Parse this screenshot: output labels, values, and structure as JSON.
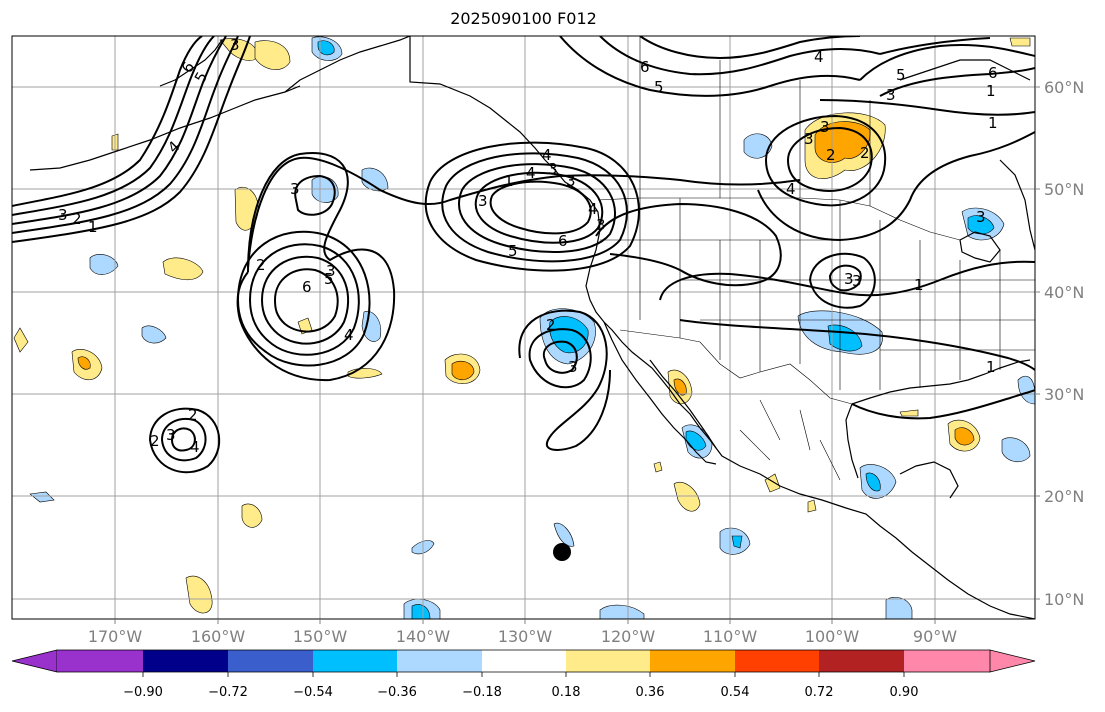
{
  "title": "2025090100 F012",
  "lon_labels": [
    "170°W",
    "160°W",
    "150°W",
    "140°W",
    "130°W",
    "120°W",
    "110°W",
    "100°W",
    "90°W"
  ],
  "lat_labels": [
    "60°N",
    "50°N",
    "40°N",
    "30°N",
    "20°N",
    "10°N"
  ],
  "colorbar": {
    "tick_labels": [
      "−0.90",
      "−0.72",
      "−0.54",
      "−0.36",
      "−0.18",
      "0.18",
      "0.36",
      "0.54",
      "0.72",
      "0.90"
    ],
    "colors": [
      "#9932cc",
      "#00008b",
      "#3a5fcd",
      "#00bfff",
      "#add8ff",
      "#ffffff",
      "#ffeb8a",
      "#ffa500",
      "#ff4000",
      "#b22222",
      "#ff88aa"
    ]
  },
  "contour_labels": [
    "6",
    "5",
    "4",
    "3",
    "3",
    "2",
    "1",
    "3",
    "2",
    "5",
    "4",
    "3",
    "6",
    "3",
    "1",
    "4",
    "3",
    "4",
    "3",
    "6",
    "5",
    "4",
    "3",
    "2",
    "1",
    "3",
    "3",
    "2",
    "4",
    "3",
    "2",
    "1",
    "2",
    "3",
    "6",
    "5",
    "4",
    "5",
    "6",
    "3",
    "2",
    "3",
    "4",
    "3",
    "1",
    "3",
    "1"
  ],
  "colors": {
    "contour": "#000000",
    "grid": "#a0a0a0",
    "coast": "#000000"
  },
  "marker": "storm-center-dot"
}
